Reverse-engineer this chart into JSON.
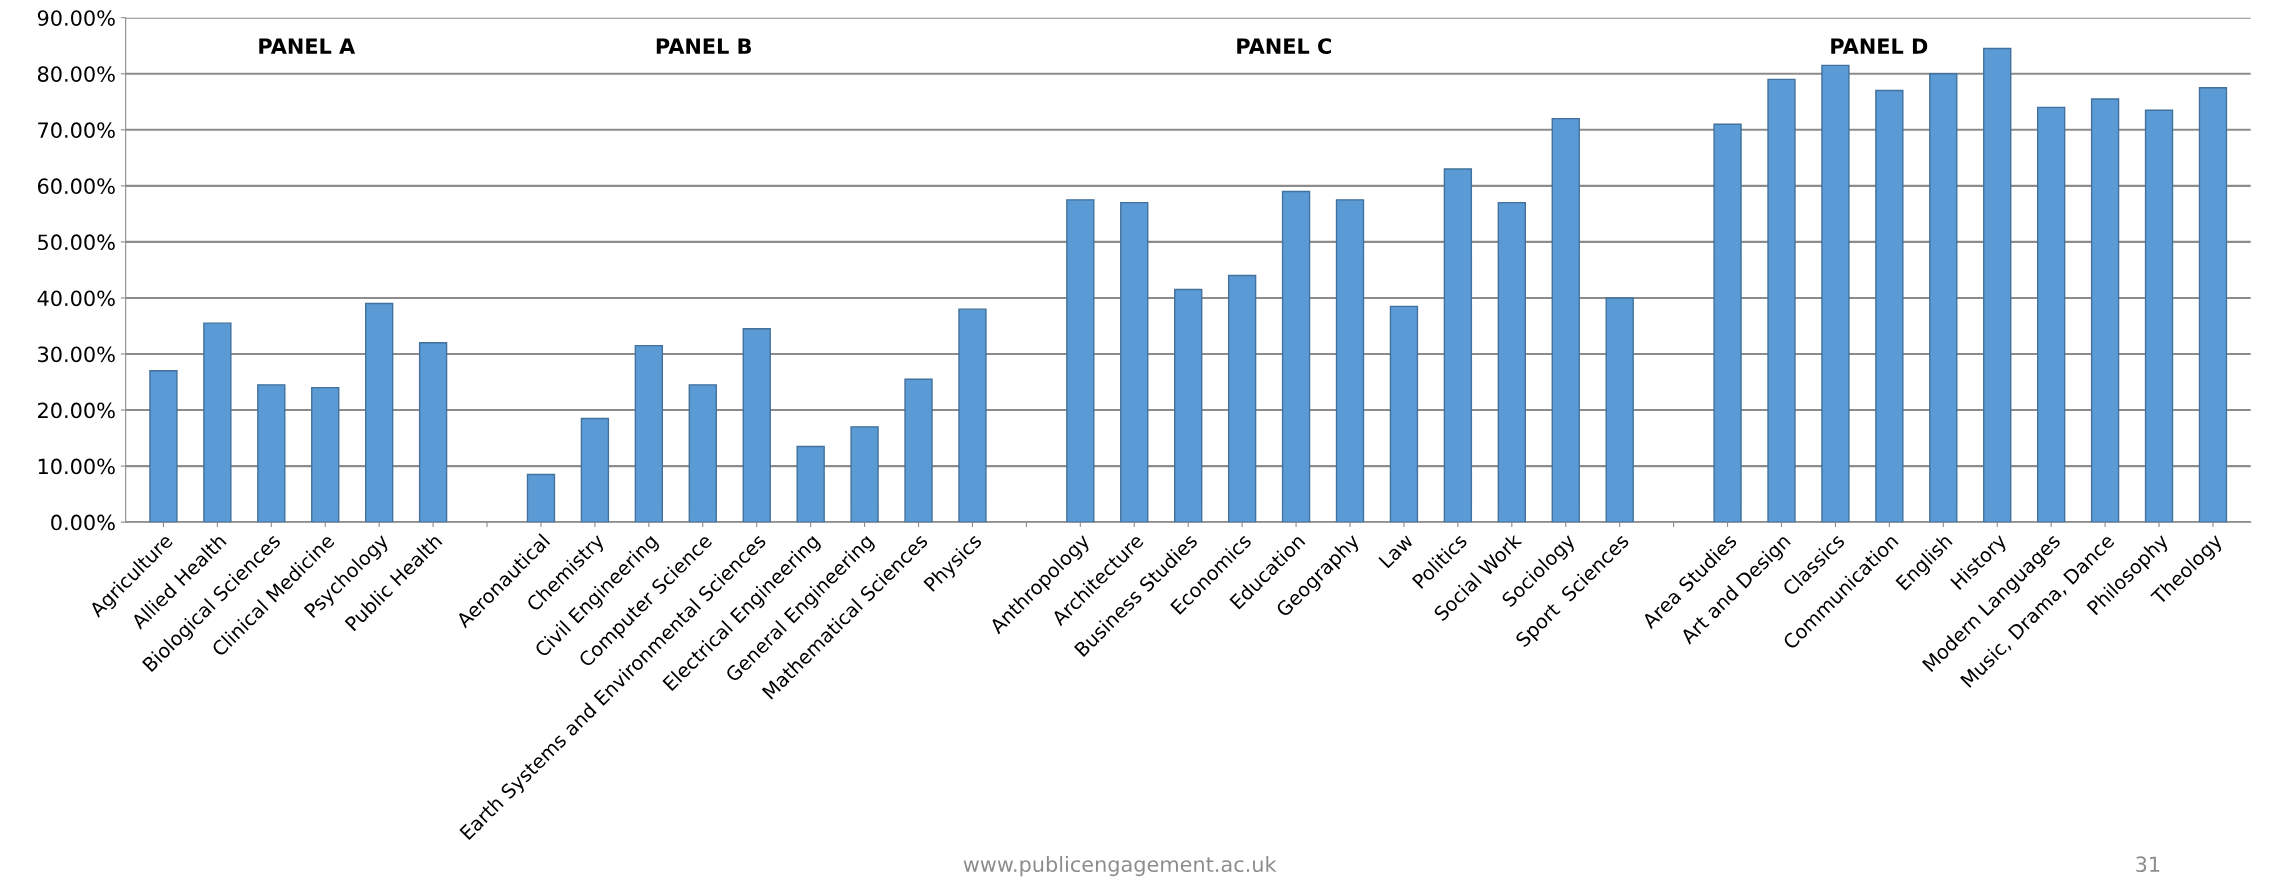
{
  "chart_data": {
    "type": "bar",
    "categories": [
      "Agriculture",
      "Allied Health",
      "Biological Sciences",
      "Clinical Medicine",
      "Psychology",
      "Public Health",
      null,
      "Aeronautical",
      "Chemistry",
      "Civil Engineering",
      "Computer Science",
      "Earth Systems and Environmental Sciences",
      "Electrical Engineering",
      "General Engineering",
      "Mathematical Sciences",
      "Physics",
      null,
      "Anthropology",
      "Architecture",
      "Business Studies",
      "Economics",
      "Education",
      "Geography",
      "Law",
      "Politics",
      "Social Work",
      "Sociology",
      "Sport  Sciences",
      null,
      "Area Studies",
      "Art and Design",
      "Classics",
      "Communication",
      "English",
      "History",
      "Modern Languages",
      "Music, Drama, Dance",
      "Philosophy",
      "Theology"
    ],
    "values": [
      27,
      35.5,
      24.5,
      24,
      39,
      32,
      null,
      8.5,
      18.5,
      31.5,
      24.5,
      34.5,
      13.5,
      17,
      25.5,
      38,
      null,
      57.5,
      57,
      41.5,
      44,
      59,
      57.5,
      38.5,
      63,
      57,
      72,
      40,
      null,
      71,
      79,
      81.5,
      77,
      80,
      84.5,
      74,
      75.5,
      73.5,
      77.5
    ],
    "color": "#5b9bd5",
    "ylim": [
      0,
      90
    ],
    "yticks": [
      {
        "value": 0,
        "label": "0.00%"
      },
      {
        "value": 10,
        "label": "10.00%"
      },
      {
        "value": 20,
        "label": "20.00%"
      },
      {
        "value": 30,
        "label": "30.00%"
      },
      {
        "value": 40,
        "label": "40.00%"
      },
      {
        "value": 50,
        "label": "50.00%"
      },
      {
        "value": 60,
        "label": "60.00%"
      },
      {
        "value": 70,
        "label": "70.00%"
      },
      {
        "value": 80,
        "label": "80.00%"
      },
      {
        "value": 90,
        "label": "90.00%"
      }
    ],
    "grid": "y",
    "annotations": [
      "PANEL A",
      "PANEL B",
      "PANEL C",
      "PANEL D",
      "www.publicengagement.ac.uk",
      "31"
    ]
  }
}
